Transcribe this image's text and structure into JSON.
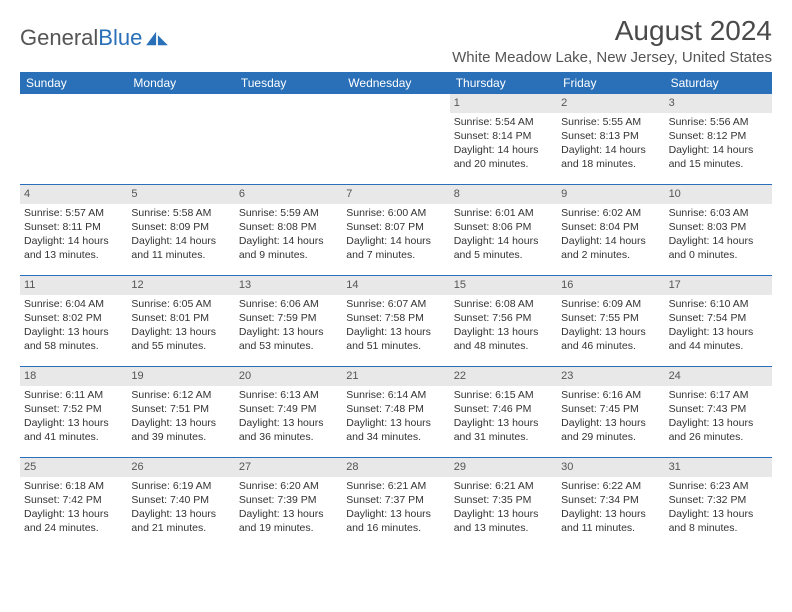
{
  "branding": {
    "logo_word1": "General",
    "logo_word2": "Blue",
    "logo_color_gray": "#6a6a6a",
    "logo_color_blue": "#2970b8"
  },
  "header": {
    "title": "August 2024",
    "location": "White Meadow Lake, New Jersey, United States"
  },
  "colors": {
    "header_bg": "#2970b8",
    "header_text": "#ffffff",
    "daynum_bg": "#e8e8e8",
    "week_border": "#2970b8",
    "body_text": "#333333",
    "title_text": "#4a4a4a"
  },
  "weekdays": [
    "Sunday",
    "Monday",
    "Tuesday",
    "Wednesday",
    "Thursday",
    "Friday",
    "Saturday"
  ],
  "weeks": [
    [
      {
        "n": "",
        "sunrise": "",
        "sunset": "",
        "daylight": ""
      },
      {
        "n": "",
        "sunrise": "",
        "sunset": "",
        "daylight": ""
      },
      {
        "n": "",
        "sunrise": "",
        "sunset": "",
        "daylight": ""
      },
      {
        "n": "",
        "sunrise": "",
        "sunset": "",
        "daylight": ""
      },
      {
        "n": "1",
        "sunrise": "Sunrise: 5:54 AM",
        "sunset": "Sunset: 8:14 PM",
        "daylight": "Daylight: 14 hours and 20 minutes."
      },
      {
        "n": "2",
        "sunrise": "Sunrise: 5:55 AM",
        "sunset": "Sunset: 8:13 PM",
        "daylight": "Daylight: 14 hours and 18 minutes."
      },
      {
        "n": "3",
        "sunrise": "Sunrise: 5:56 AM",
        "sunset": "Sunset: 8:12 PM",
        "daylight": "Daylight: 14 hours and 15 minutes."
      }
    ],
    [
      {
        "n": "4",
        "sunrise": "Sunrise: 5:57 AM",
        "sunset": "Sunset: 8:11 PM",
        "daylight": "Daylight: 14 hours and 13 minutes."
      },
      {
        "n": "5",
        "sunrise": "Sunrise: 5:58 AM",
        "sunset": "Sunset: 8:09 PM",
        "daylight": "Daylight: 14 hours and 11 minutes."
      },
      {
        "n": "6",
        "sunrise": "Sunrise: 5:59 AM",
        "sunset": "Sunset: 8:08 PM",
        "daylight": "Daylight: 14 hours and 9 minutes."
      },
      {
        "n": "7",
        "sunrise": "Sunrise: 6:00 AM",
        "sunset": "Sunset: 8:07 PM",
        "daylight": "Daylight: 14 hours and 7 minutes."
      },
      {
        "n": "8",
        "sunrise": "Sunrise: 6:01 AM",
        "sunset": "Sunset: 8:06 PM",
        "daylight": "Daylight: 14 hours and 5 minutes."
      },
      {
        "n": "9",
        "sunrise": "Sunrise: 6:02 AM",
        "sunset": "Sunset: 8:04 PM",
        "daylight": "Daylight: 14 hours and 2 minutes."
      },
      {
        "n": "10",
        "sunrise": "Sunrise: 6:03 AM",
        "sunset": "Sunset: 8:03 PM",
        "daylight": "Daylight: 14 hours and 0 minutes."
      }
    ],
    [
      {
        "n": "11",
        "sunrise": "Sunrise: 6:04 AM",
        "sunset": "Sunset: 8:02 PM",
        "daylight": "Daylight: 13 hours and 58 minutes."
      },
      {
        "n": "12",
        "sunrise": "Sunrise: 6:05 AM",
        "sunset": "Sunset: 8:01 PM",
        "daylight": "Daylight: 13 hours and 55 minutes."
      },
      {
        "n": "13",
        "sunrise": "Sunrise: 6:06 AM",
        "sunset": "Sunset: 7:59 PM",
        "daylight": "Daylight: 13 hours and 53 minutes."
      },
      {
        "n": "14",
        "sunrise": "Sunrise: 6:07 AM",
        "sunset": "Sunset: 7:58 PM",
        "daylight": "Daylight: 13 hours and 51 minutes."
      },
      {
        "n": "15",
        "sunrise": "Sunrise: 6:08 AM",
        "sunset": "Sunset: 7:56 PM",
        "daylight": "Daylight: 13 hours and 48 minutes."
      },
      {
        "n": "16",
        "sunrise": "Sunrise: 6:09 AM",
        "sunset": "Sunset: 7:55 PM",
        "daylight": "Daylight: 13 hours and 46 minutes."
      },
      {
        "n": "17",
        "sunrise": "Sunrise: 6:10 AM",
        "sunset": "Sunset: 7:54 PM",
        "daylight": "Daylight: 13 hours and 44 minutes."
      }
    ],
    [
      {
        "n": "18",
        "sunrise": "Sunrise: 6:11 AM",
        "sunset": "Sunset: 7:52 PM",
        "daylight": "Daylight: 13 hours and 41 minutes."
      },
      {
        "n": "19",
        "sunrise": "Sunrise: 6:12 AM",
        "sunset": "Sunset: 7:51 PM",
        "daylight": "Daylight: 13 hours and 39 minutes."
      },
      {
        "n": "20",
        "sunrise": "Sunrise: 6:13 AM",
        "sunset": "Sunset: 7:49 PM",
        "daylight": "Daylight: 13 hours and 36 minutes."
      },
      {
        "n": "21",
        "sunrise": "Sunrise: 6:14 AM",
        "sunset": "Sunset: 7:48 PM",
        "daylight": "Daylight: 13 hours and 34 minutes."
      },
      {
        "n": "22",
        "sunrise": "Sunrise: 6:15 AM",
        "sunset": "Sunset: 7:46 PM",
        "daylight": "Daylight: 13 hours and 31 minutes."
      },
      {
        "n": "23",
        "sunrise": "Sunrise: 6:16 AM",
        "sunset": "Sunset: 7:45 PM",
        "daylight": "Daylight: 13 hours and 29 minutes."
      },
      {
        "n": "24",
        "sunrise": "Sunrise: 6:17 AM",
        "sunset": "Sunset: 7:43 PM",
        "daylight": "Daylight: 13 hours and 26 minutes."
      }
    ],
    [
      {
        "n": "25",
        "sunrise": "Sunrise: 6:18 AM",
        "sunset": "Sunset: 7:42 PM",
        "daylight": "Daylight: 13 hours and 24 minutes."
      },
      {
        "n": "26",
        "sunrise": "Sunrise: 6:19 AM",
        "sunset": "Sunset: 7:40 PM",
        "daylight": "Daylight: 13 hours and 21 minutes."
      },
      {
        "n": "27",
        "sunrise": "Sunrise: 6:20 AM",
        "sunset": "Sunset: 7:39 PM",
        "daylight": "Daylight: 13 hours and 19 minutes."
      },
      {
        "n": "28",
        "sunrise": "Sunrise: 6:21 AM",
        "sunset": "Sunset: 7:37 PM",
        "daylight": "Daylight: 13 hours and 16 minutes."
      },
      {
        "n": "29",
        "sunrise": "Sunrise: 6:21 AM",
        "sunset": "Sunset: 7:35 PM",
        "daylight": "Daylight: 13 hours and 13 minutes."
      },
      {
        "n": "30",
        "sunrise": "Sunrise: 6:22 AM",
        "sunset": "Sunset: 7:34 PM",
        "daylight": "Daylight: 13 hours and 11 minutes."
      },
      {
        "n": "31",
        "sunrise": "Sunrise: 6:23 AM",
        "sunset": "Sunset: 7:32 PM",
        "daylight": "Daylight: 13 hours and 8 minutes."
      }
    ]
  ]
}
